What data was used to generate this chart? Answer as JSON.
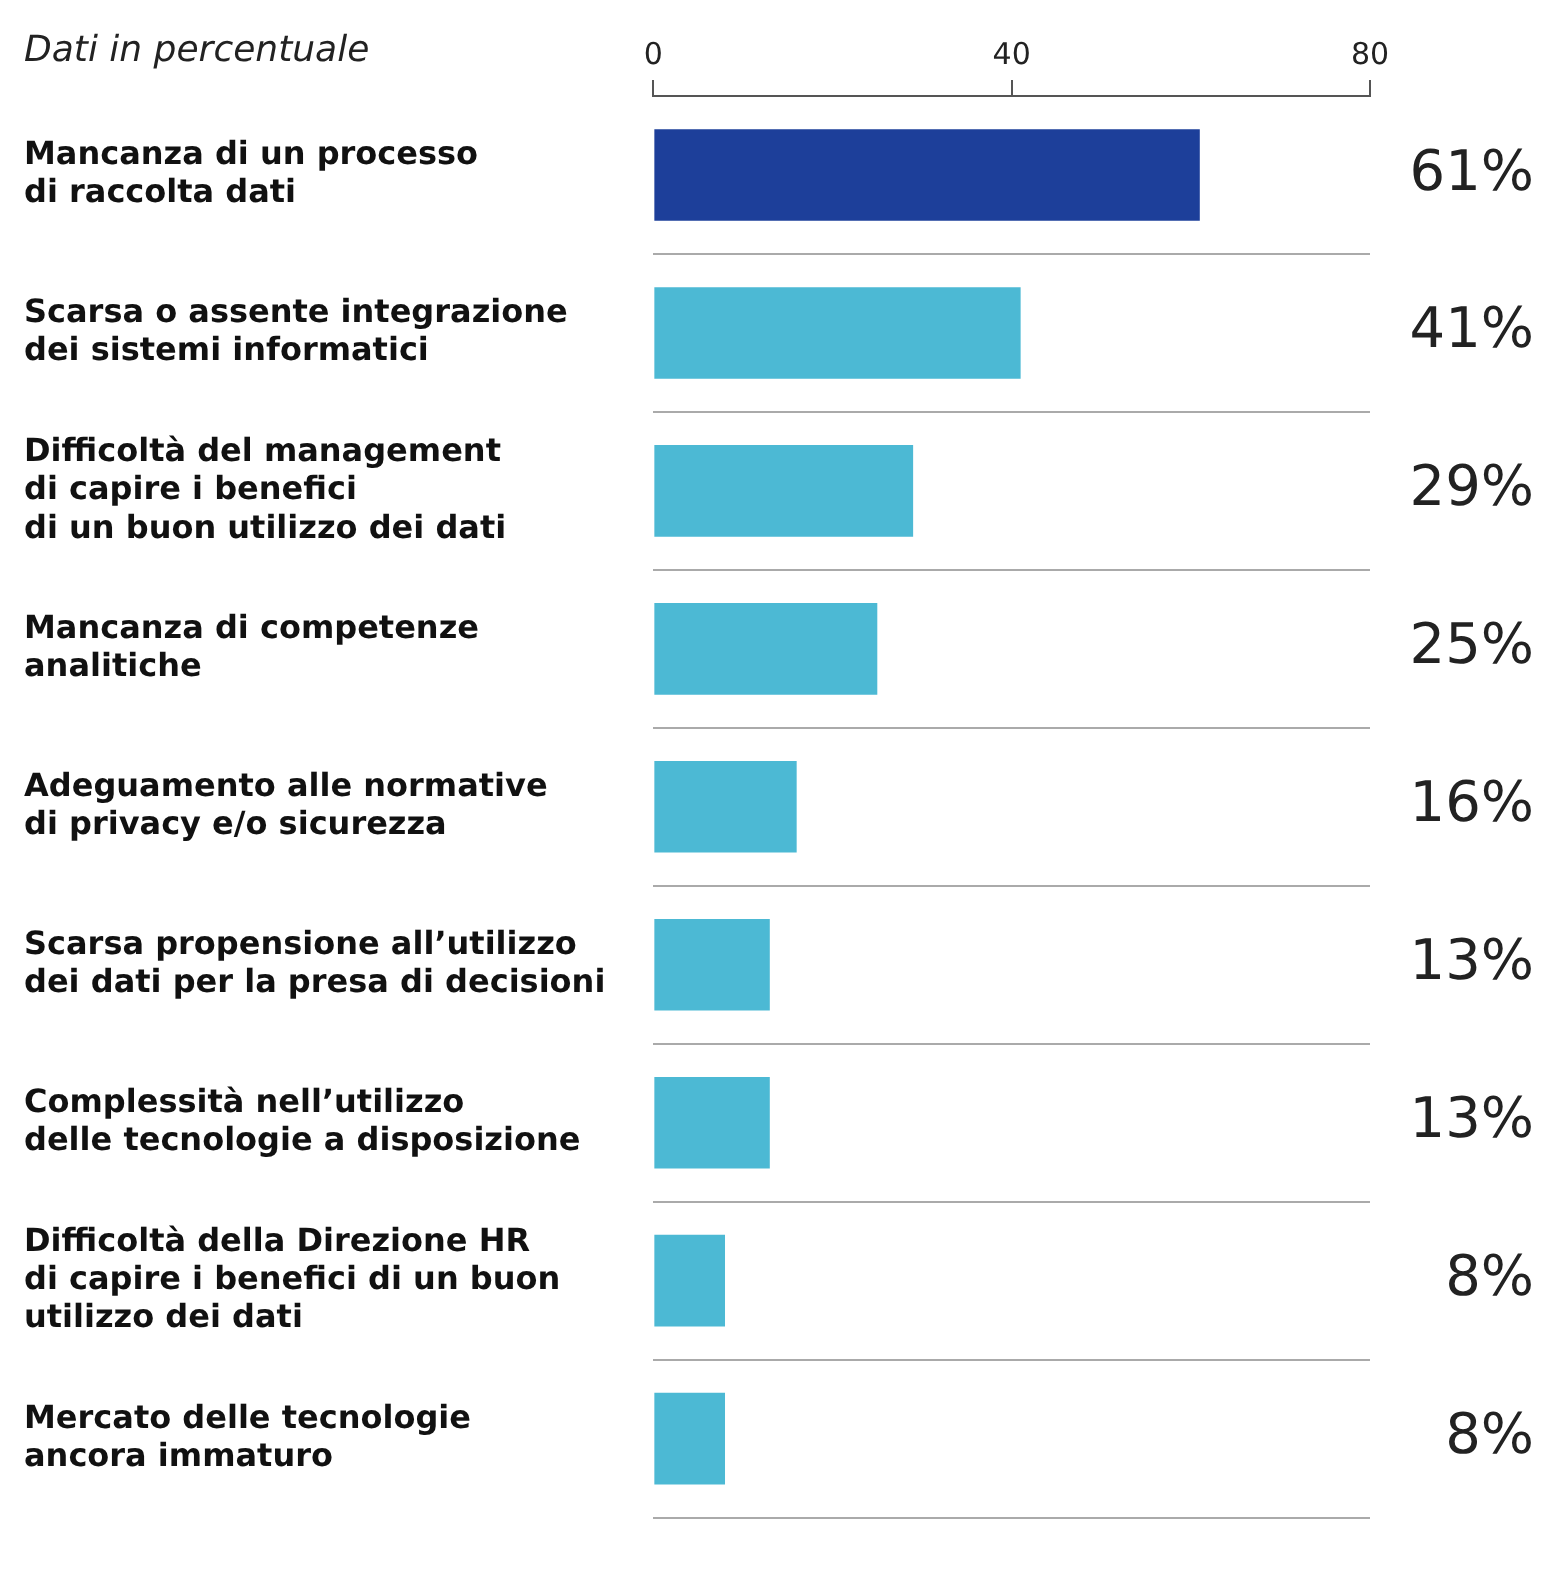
{
  "chart_data": {
    "type": "bar",
    "orientation": "horizontal",
    "subtitle": "Dati in percentuale",
    "categories": [
      "Mancanza di un processo\ndi raccolta dati",
      "Scarsa o assente integrazione\ndei sistemi informatici",
      "Difficoltà del management\ndi capire i benefici\ndi un buon utilizzo dei dati",
      "Mancanza di competenze\nanalitiche",
      "Adeguamento alle normative\ndi privacy e/o sicurezza",
      "Scarsa propensione all’utilizzo\ndei dati per la presa di decisioni",
      "Complessità nell’utilizzo\ndelle tecnologie a disposizione",
      "Difficoltà della Direzione HR\ndi capire i benefici di un buon\nutilizzo dei dati",
      "Mercato delle tecnologie\nancora immaturo"
    ],
    "values": [
      61,
      41,
      29,
      25,
      16,
      13,
      13,
      8,
      8
    ],
    "value_labels": [
      "61%",
      "41%",
      "29%",
      "25%",
      "16%",
      "13%",
      "13%",
      "8%",
      "8%"
    ],
    "colors": [
      "#1d3f9a",
      "#4cb9d4",
      "#4cb9d4",
      "#4cb9d4",
      "#4cb9d4",
      "#4cb9d4",
      "#4cb9d4",
      "#4cb9d4",
      "#4cb9d4"
    ],
    "xlim": [
      0,
      80
    ],
    "xticks": [
      0,
      40,
      80
    ],
    "grid": "y",
    "legend": false
  }
}
